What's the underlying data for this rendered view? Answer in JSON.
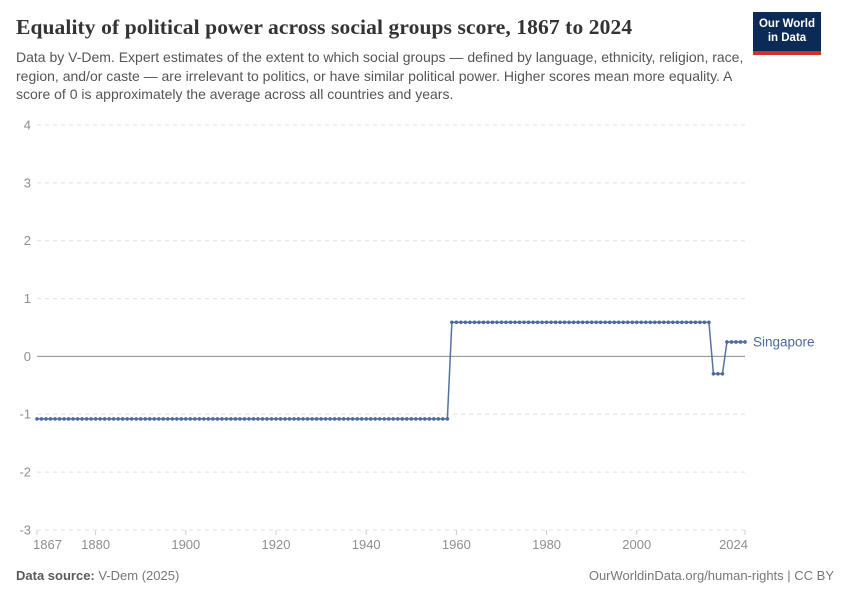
{
  "header": {
    "title": "Equality of political power across social groups score, 1867 to 2024",
    "subtitle": "Data by V-Dem. Expert estimates of the extent to which social groups — defined by language, ethnicity, religion, race, region, and/or caste — are irrelevant to politics, or have similar political power. Higher scores mean more equality. A score of 0 is approximately the average across all countries and years."
  },
  "logo": {
    "line1": "Our World",
    "line2": "in Data",
    "background_color": "#0c2a56",
    "stripe_color": "#cf3229"
  },
  "chart_data": {
    "type": "line",
    "title": "Equality of political power across social groups score, 1867 to 2024",
    "xlabel": "",
    "ylabel": "",
    "xlim": [
      1867,
      2024
    ],
    "ylim": [
      -3,
      4
    ],
    "x_ticks": [
      1867,
      1880,
      1900,
      1920,
      1940,
      1960,
      1980,
      2000,
      2024
    ],
    "y_ticks": [
      -3,
      -2,
      -1,
      0,
      1,
      2,
      3,
      4
    ],
    "grid": "horizontal dashed gridlines, solid line at zero",
    "legend_position": "label at end of line",
    "marker": "dot every year",
    "series": [
      {
        "name": "Singapore",
        "color": "#4C6A9C",
        "segments": [
          {
            "from": 1867,
            "to": 1958,
            "value": -1.08
          },
          {
            "from": 1959,
            "to": 2016,
            "value": 0.59
          },
          {
            "from": 2017,
            "to": 2019,
            "value": -0.3
          },
          {
            "from": 2020,
            "to": 2024,
            "value": 0.25
          }
        ]
      }
    ],
    "colors": {
      "gridline": "#e0e0e0",
      "zero_line": "#8c8c8c",
      "tick_label": "#8e8e93",
      "tick_mark": "#cccccc"
    }
  },
  "footer": {
    "source_label": "Data source:",
    "source_value": " V-Dem (2025)",
    "right_text": "OurWorldinData.org/human-rights | CC BY"
  }
}
